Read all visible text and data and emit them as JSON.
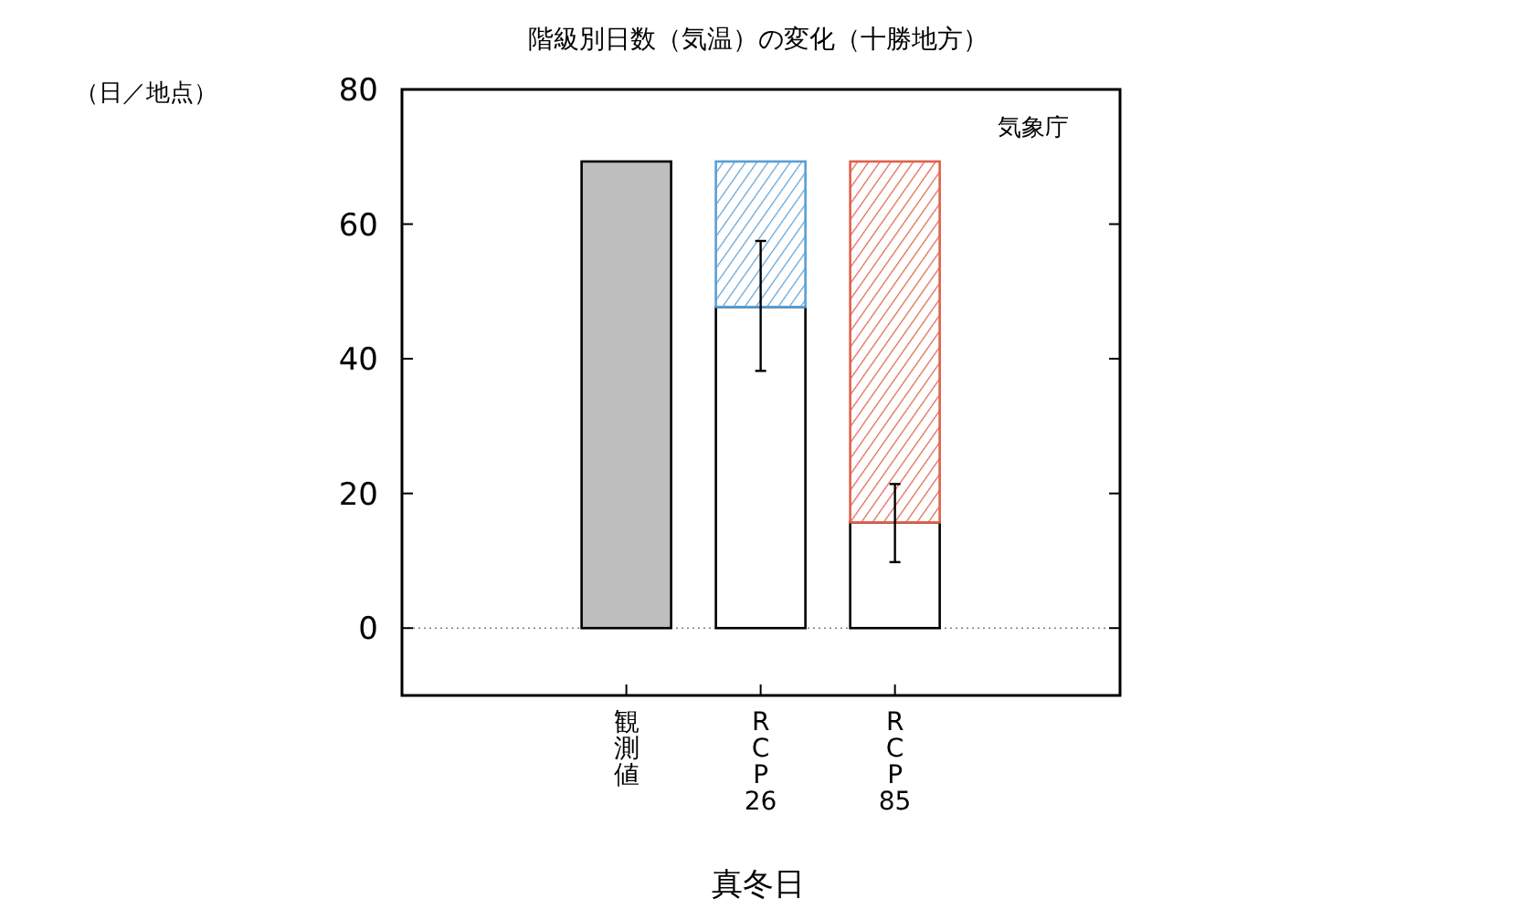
{
  "chart_data": {
    "type": "bar",
    "title": "階級別日数（気温）の変化（十勝地方）",
    "xlabel": "真冬日",
    "annotations": [
      "（日／地点）",
      "気象庁"
    ],
    "categories": [
      "観測値",
      "RCP26",
      "RCP85"
    ],
    "stacked": true,
    "series": [
      {
        "colors": [
          "#bebebe",
          "#ffffff",
          "#ffffff"
        ],
        "values": [
          69.3,
          47.7,
          15.7
        ],
        "errors": [
          null,
          [
            38.2,
            57.5
          ],
          [
            9.8,
            21.4
          ]
        ]
      },
      {
        "colors": [
          null,
          "#5a9fd4",
          "#e0604a"
        ],
        "values": [
          null,
          21.6,
          53.6
        ]
      }
    ],
    "ylim": [
      -10,
      80
    ],
    "yticks": [
      0,
      20,
      40,
      60,
      80
    ],
    "ref_lines": [
      {
        "axis": "y",
        "value": 0,
        "color": "#808080",
        "line_style": "dotted"
      }
    ],
    "grid": false
  }
}
